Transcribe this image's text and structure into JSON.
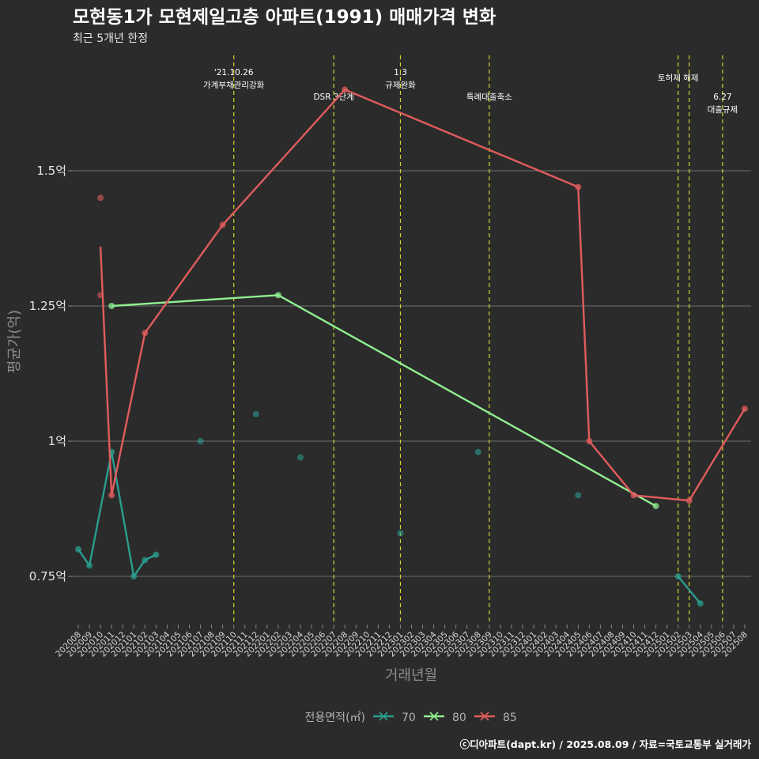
{
  "chart_data": {
    "type": "line",
    "title": "모현동1가 모현제일고층 아파트(1991) 매매가격 변화",
    "subtitle": "최근 5개년 한정",
    "xlabel": "거래년월",
    "ylabel": "평균가(억)",
    "ylim": [
      0.65,
      1.72
    ],
    "yticks": [
      {
        "value": 0.75,
        "label": "0.75억"
      },
      {
        "value": 1.0,
        "label": "1억"
      },
      {
        "value": 1.25,
        "label": "1.25억"
      },
      {
        "value": 1.5,
        "label": "1.5억"
      }
    ],
    "categories": [
      "202008",
      "202009",
      "202010",
      "202011",
      "202012",
      "202101",
      "202102",
      "202103",
      "202104",
      "202105",
      "202106",
      "202107",
      "202108",
      "202109",
      "202110",
      "202111",
      "202112",
      "202201",
      "202202",
      "202203",
      "202204",
      "202205",
      "202206",
      "202207",
      "202208",
      "202209",
      "202210",
      "202211",
      "202212",
      "202301",
      "202302",
      "202303",
      "202304",
      "202305",
      "202306",
      "202307",
      "202308",
      "202309",
      "202310",
      "202311",
      "202312",
      "202401",
      "202402",
      "202403",
      "202404",
      "202405",
      "202406",
      "202407",
      "202408",
      "202409",
      "202410",
      "202411",
      "202412",
      "202501",
      "202502",
      "202503",
      "202504",
      "202505",
      "202506",
      "202507",
      "202508"
    ],
    "series": [
      {
        "name": "70",
        "color": "#2a9d8f",
        "points": [
          {
            "x": "202008",
            "y": 0.8,
            "line": true
          },
          {
            "x": "202009",
            "y": 0.77,
            "line": true
          },
          {
            "x": "202011",
            "y": 0.98,
            "line": true
          },
          {
            "x": "202101",
            "y": 0.75,
            "line": true
          },
          {
            "x": "202102",
            "y": 0.78,
            "line": true
          },
          {
            "x": "202103",
            "y": 0.79,
            "line": true
          },
          {
            "x": "202107",
            "y": 1.0,
            "line": false
          },
          {
            "x": "202112",
            "y": 1.05,
            "line": false
          },
          {
            "x": "202204",
            "y": 0.97,
            "line": false
          },
          {
            "x": "202301",
            "y": 0.83,
            "line": false
          },
          {
            "x": "202308",
            "y": 0.98,
            "line": false
          },
          {
            "x": "202405",
            "y": 0.9,
            "line": false
          },
          {
            "x": "202502",
            "y": 0.75,
            "line": true
          },
          {
            "x": "202504",
            "y": 0.7,
            "line": true
          }
        ],
        "raw_points": []
      },
      {
        "name": "80",
        "color": "#90ee90",
        "points": [
          {
            "x": "202011",
            "y": 1.25,
            "line": true
          },
          {
            "x": "202202",
            "y": 1.27,
            "line": true
          },
          {
            "x": "202412",
            "y": 0.88,
            "line": true
          }
        ],
        "raw_points": []
      },
      {
        "name": "85",
        "color": "#e05c5c",
        "points": [
          {
            "x": "202010",
            "y": 1.36,
            "line": true,
            "dot": false
          },
          {
            "x": "202011",
            "y": 0.9,
            "line": true
          },
          {
            "x": "202102",
            "y": 1.2,
            "line": true
          },
          {
            "x": "202109",
            "y": 1.4,
            "line": true
          },
          {
            "x": "202208",
            "y": 1.65,
            "line": true
          },
          {
            "x": "202405",
            "y": 1.47,
            "line": true
          },
          {
            "x": "202406",
            "y": 1.0,
            "line": true
          },
          {
            "x": "202410",
            "y": 0.9,
            "line": true
          },
          {
            "x": "202503",
            "y": 0.89,
            "line": true
          },
          {
            "x": "202508",
            "y": 1.06,
            "line": true
          }
        ],
        "raw_points": [
          {
            "x": "202010",
            "y": 1.45
          },
          {
            "x": "202010",
            "y": 1.27
          }
        ]
      }
    ],
    "events": [
      {
        "x": "202110",
        "lines": [
          "'21.10.26",
          "가계부채관리강화"
        ],
        "row": 0
      },
      {
        "x": "202207",
        "lines": [
          "DSR 3단계"
        ],
        "row": 2
      },
      {
        "x": "202301",
        "lines": [
          "1.3",
          "규제완화"
        ],
        "row": 0
      },
      {
        "x": "202309",
        "lines": [
          "특례대출축소"
        ],
        "row": 2
      },
      {
        "x": "202502",
        "lines": [
          "토허제 해제"
        ],
        "row": 1
      },
      {
        "x": "202503",
        "lines": [],
        "row": 1
      },
      {
        "x": "202506",
        "lines": [
          "6.27",
          "대출규제"
        ],
        "row": 2
      }
    ],
    "legend": {
      "title": "전용면적(㎡)",
      "position": "bottom"
    },
    "caption": "ⓒ디아파트(dapt.kr) / 2025.08.09 / 자료=국토교통부 실거래가"
  }
}
